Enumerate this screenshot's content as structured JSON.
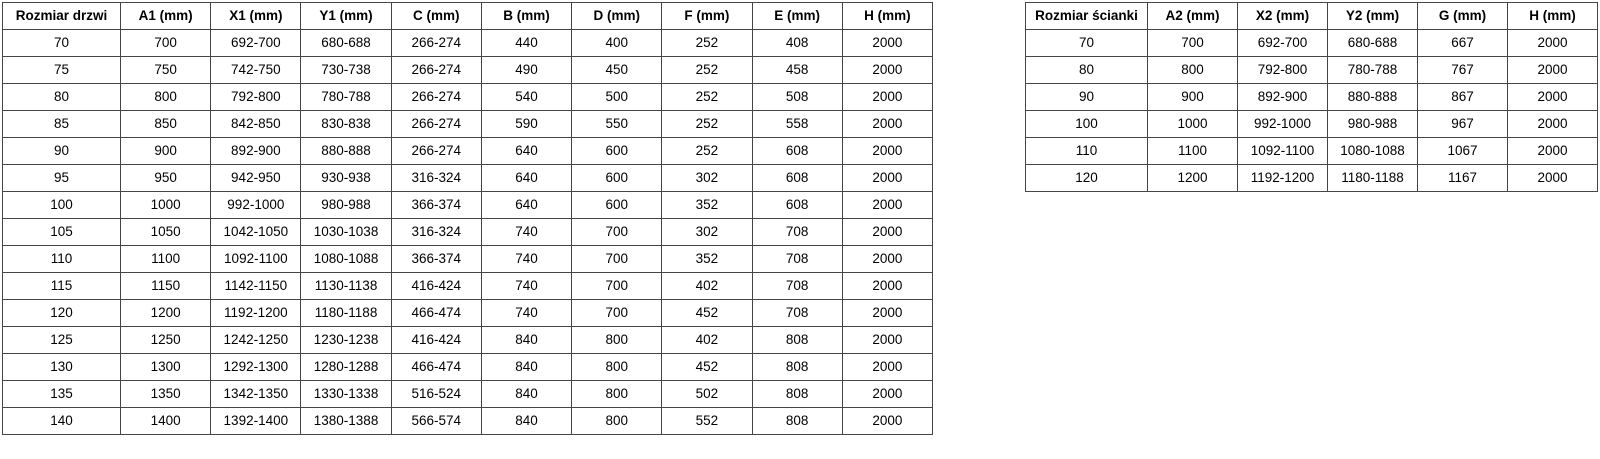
{
  "page": {
    "background": "#ffffff",
    "text_color": "#000000",
    "border_color": "#454545"
  },
  "tables": [
    {
      "id": "door-sizes",
      "headers": [
        "Rozmiar drzwi",
        "A1 (mm)",
        "X1 (mm)",
        "Y1 (mm)",
        "C (mm)",
        "B (mm)",
        "D (mm)",
        "F (mm)",
        "E (mm)",
        "H (mm)"
      ],
      "rows": [
        [
          "70",
          "700",
          "692-700",
          "680-688",
          "266-274",
          "440",
          "400",
          "252",
          "408",
          "2000"
        ],
        [
          "75",
          "750",
          "742-750",
          "730-738",
          "266-274",
          "490",
          "450",
          "252",
          "458",
          "2000"
        ],
        [
          "80",
          "800",
          "792-800",
          "780-788",
          "266-274",
          "540",
          "500",
          "252",
          "508",
          "2000"
        ],
        [
          "85",
          "850",
          "842-850",
          "830-838",
          "266-274",
          "590",
          "550",
          "252",
          "558",
          "2000"
        ],
        [
          "90",
          "900",
          "892-900",
          "880-888",
          "266-274",
          "640",
          "600",
          "252",
          "608",
          "2000"
        ],
        [
          "95",
          "950",
          "942-950",
          "930-938",
          "316-324",
          "640",
          "600",
          "302",
          "608",
          "2000"
        ],
        [
          "100",
          "1000",
          "992-1000",
          "980-988",
          "366-374",
          "640",
          "600",
          "352",
          "608",
          "2000"
        ],
        [
          "105",
          "1050",
          "1042-1050",
          "1030-1038",
          "316-324",
          "740",
          "700",
          "302",
          "708",
          "2000"
        ],
        [
          "110",
          "1100",
          "1092-1100",
          "1080-1088",
          "366-374",
          "740",
          "700",
          "352",
          "708",
          "2000"
        ],
        [
          "115",
          "1150",
          "1142-1150",
          "1130-1138",
          "416-424",
          "740",
          "700",
          "402",
          "708",
          "2000"
        ],
        [
          "120",
          "1200",
          "1192-1200",
          "1180-1188",
          "466-474",
          "740",
          "700",
          "452",
          "708",
          "2000"
        ],
        [
          "125",
          "1250",
          "1242-1250",
          "1230-1238",
          "416-424",
          "840",
          "800",
          "402",
          "808",
          "2000"
        ],
        [
          "130",
          "1300",
          "1292-1300",
          "1280-1288",
          "466-474",
          "840",
          "800",
          "452",
          "808",
          "2000"
        ],
        [
          "135",
          "1350",
          "1342-1350",
          "1330-1338",
          "516-524",
          "840",
          "800",
          "502",
          "808",
          "2000"
        ],
        [
          "140",
          "1400",
          "1392-1400",
          "1380-1388",
          "566-574",
          "840",
          "800",
          "552",
          "808",
          "2000"
        ]
      ]
    },
    {
      "id": "wall-sizes",
      "headers": [
        "Rozmiar ścianki",
        "A2 (mm)",
        "X2 (mm)",
        "Y2 (mm)",
        "G (mm)",
        "H (mm)"
      ],
      "rows": [
        [
          "70",
          "700",
          "692-700",
          "680-688",
          "667",
          "2000"
        ],
        [
          "80",
          "800",
          "792-800",
          "780-788",
          "767",
          "2000"
        ],
        [
          "90",
          "900",
          "892-900",
          "880-888",
          "867",
          "2000"
        ],
        [
          "100",
          "1000",
          "992-1000",
          "980-988",
          "967",
          "2000"
        ],
        [
          "110",
          "1100",
          "1092-1100",
          "1080-1088",
          "1067",
          "2000"
        ],
        [
          "120",
          "1200",
          "1192-1200",
          "1180-1188",
          "1167",
          "2000"
        ]
      ]
    }
  ]
}
